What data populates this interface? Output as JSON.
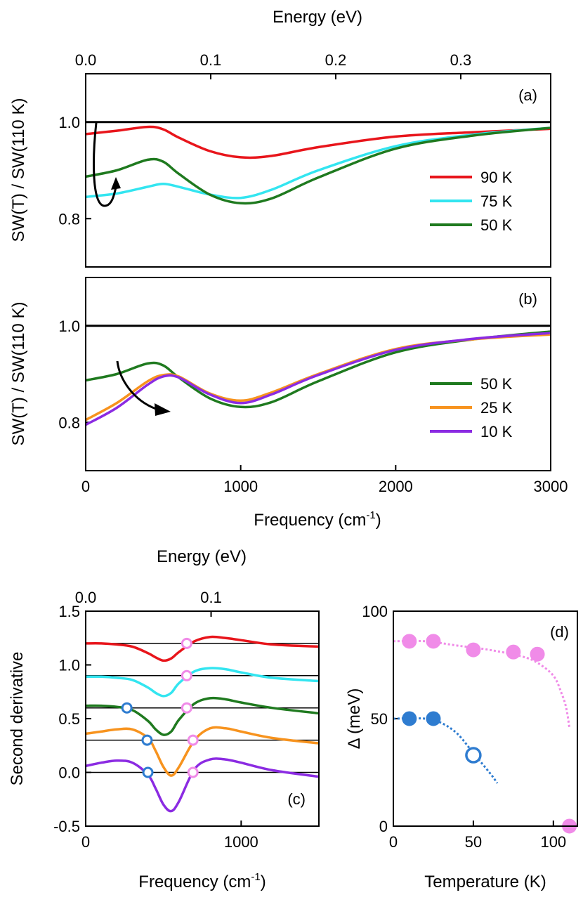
{
  "chart_data": [
    {
      "id": "a",
      "type": "line",
      "panel_label": "(a)",
      "top_axis_label": "Energy (eV)",
      "top_ticks": [
        "0.0",
        "0.1",
        "0.2",
        "0.3"
      ],
      "top_tick_values": [
        0.0,
        0.1,
        0.2,
        0.3
      ],
      "ylabel": "SW(T) / SW(110 K)",
      "xlim": [
        0,
        3000
      ],
      "ylim": [
        0.7,
        1.1
      ],
      "y_ticks": [
        "0.8",
        "1.0"
      ],
      "y_tick_values": [
        0.8,
        1.0
      ],
      "reference_line": 1.0,
      "legend_position": "right",
      "x": [
        0,
        200,
        400,
        500,
        600,
        800,
        1000,
        1200,
        1500,
        2000,
        2500,
        3000
      ],
      "series": [
        {
          "name": "90 K",
          "color": "#e8151b",
          "values": [
            0.975,
            0.982,
            0.99,
            0.985,
            0.968,
            0.94,
            0.927,
            0.93,
            0.948,
            0.97,
            0.979,
            0.986
          ]
        },
        {
          "name": "75 K",
          "color": "#33e5f0",
          "values": [
            0.845,
            0.852,
            0.866,
            0.872,
            0.866,
            0.85,
            0.843,
            0.86,
            0.9,
            0.95,
            0.974,
            0.988
          ]
        },
        {
          "name": "50 K",
          "color": "#1f7a1f",
          "values": [
            0.887,
            0.9,
            0.922,
            0.918,
            0.893,
            0.85,
            0.832,
            0.842,
            0.885,
            0.945,
            0.972,
            0.988
          ]
        }
      ]
    },
    {
      "id": "b",
      "type": "line",
      "panel_label": "(b)",
      "ylabel": "SW(T) / SW(110 K)",
      "xlabel": "Frequency (cm",
      "xlabel_sup": "-1",
      "xlabel_end": ")",
      "xlim": [
        0,
        3000
      ],
      "ylim": [
        0.7,
        1.1
      ],
      "x_ticks": [
        "0",
        "1000",
        "2000",
        "3000"
      ],
      "x_tick_values": [
        0,
        1000,
        2000,
        3000
      ],
      "y_ticks": [
        "0.8",
        "1.0"
      ],
      "y_tick_values": [
        0.8,
        1.0
      ],
      "reference_line": 1.0,
      "legend_position": "right",
      "x": [
        0,
        200,
        400,
        500,
        600,
        800,
        1000,
        1200,
        1500,
        2000,
        2500,
        3000
      ],
      "series": [
        {
          "name": "50 K",
          "color": "#1f7a1f",
          "values": [
            0.887,
            0.9,
            0.922,
            0.918,
            0.893,
            0.85,
            0.832,
            0.842,
            0.885,
            0.945,
            0.972,
            0.988
          ]
        },
        {
          "name": "25 K",
          "color": "#f7931e",
          "values": [
            0.805,
            0.84,
            0.885,
            0.898,
            0.895,
            0.86,
            0.845,
            0.862,
            0.9,
            0.952,
            0.972,
            0.982
          ]
        },
        {
          "name": "10 K",
          "color": "#8b2be2",
          "values": [
            0.795,
            0.83,
            0.878,
            0.895,
            0.893,
            0.858,
            0.84,
            0.858,
            0.898,
            0.95,
            0.973,
            0.985
          ]
        }
      ]
    },
    {
      "id": "c",
      "type": "line",
      "panel_label": "(c)",
      "top_axis_label": "Energy (eV)",
      "top_ticks": [
        "0.0",
        "0.1"
      ],
      "top_tick_values": [
        0.0,
        0.1
      ],
      "ylabel": "Second derivative",
      "xlabel": "Frequency (cm",
      "xlabel_sup": "-1",
      "xlabel_end": ")",
      "xlim": [
        0,
        1500
      ],
      "ylim": [
        -0.5,
        1.5
      ],
      "x_ticks": [
        "0",
        "1000"
      ],
      "x_tick_values": [
        0,
        1000
      ],
      "y_ticks": [
        "-0.5",
        "0.0",
        "0.5",
        "1.0",
        "1.5"
      ],
      "y_tick_values": [
        -0.5,
        0.0,
        0.5,
        1.0,
        1.5
      ],
      "baselines": [
        1.2,
        0.9,
        0.6,
        0.3,
        0.0
      ],
      "x": [
        0,
        100,
        200,
        300,
        400,
        450,
        500,
        550,
        600,
        700,
        800,
        900,
        1000,
        1200,
        1500
      ],
      "series": [
        {
          "name": "90 K",
          "color": "#e8151b",
          "values": [
            1.2,
            1.2,
            1.19,
            1.17,
            1.11,
            1.07,
            1.04,
            1.06,
            1.12,
            1.22,
            1.26,
            1.25,
            1.23,
            1.19,
            1.17
          ]
        },
        {
          "name": "75 K",
          "color": "#33e5f0",
          "values": [
            0.89,
            0.89,
            0.88,
            0.86,
            0.79,
            0.74,
            0.71,
            0.74,
            0.83,
            0.94,
            0.97,
            0.96,
            0.93,
            0.88,
            0.85
          ]
        },
        {
          "name": "50 K",
          "color": "#1f7a1f",
          "values": [
            0.62,
            0.62,
            0.61,
            0.58,
            0.48,
            0.4,
            0.35,
            0.38,
            0.49,
            0.64,
            0.69,
            0.68,
            0.65,
            0.6,
            0.55
          ]
        },
        {
          "name": "25 K",
          "color": "#f7931e",
          "values": [
            0.36,
            0.38,
            0.4,
            0.4,
            0.32,
            0.2,
            0.05,
            -0.03,
            0.05,
            0.3,
            0.41,
            0.41,
            0.38,
            0.32,
            0.27
          ]
        },
        {
          "name": "10 K",
          "color": "#8b2be2",
          "values": [
            0.06,
            0.09,
            0.11,
            0.09,
            -0.02,
            -0.15,
            -0.3,
            -0.36,
            -0.27,
            0.03,
            0.12,
            0.12,
            0.09,
            0.02,
            -0.04
          ]
        }
      ],
      "markers": [
        {
          "type": "pink",
          "x": 650,
          "y": 1.2
        },
        {
          "type": "pink",
          "x": 650,
          "y": 0.9
        },
        {
          "type": "pink",
          "x": 650,
          "y": 0.6
        },
        {
          "type": "pink",
          "x": 690,
          "y": 0.3
        },
        {
          "type": "pink",
          "x": 690,
          "y": 0.0
        },
        {
          "type": "blue",
          "x": 265,
          "y": 0.6
        },
        {
          "type": "blue",
          "x": 395,
          "y": 0.3
        },
        {
          "type": "blue",
          "x": 400,
          "y": 0.0
        }
      ]
    },
    {
      "id": "d",
      "type": "scatter",
      "panel_label": "(d)",
      "ylabel": "Δ (meV)",
      "xlabel": "Temperature (K)",
      "xlim": [
        0,
        115
      ],
      "ylim": [
        0,
        100
      ],
      "x_ticks": [
        "0",
        "50",
        "100"
      ],
      "x_tick_values": [
        0,
        50,
        100
      ],
      "y_ticks": [
        "0",
        "50",
        "100"
      ],
      "y_tick_values": [
        0,
        50,
        100
      ],
      "series": [
        {
          "name": "pink",
          "color": "#f08be8",
          "points": [
            [
              10,
              86
            ],
            [
              25,
              86
            ],
            [
              50,
              82
            ],
            [
              75,
              81
            ],
            [
              90,
              80
            ],
            [
              110,
              0
            ]
          ]
        },
        {
          "name": "blue filled",
          "color": "#2e7cd0",
          "points": [
            [
              10,
              50
            ],
            [
              25,
              50
            ]
          ]
        },
        {
          "name": "blue open",
          "color": "#2e7cd0",
          "points": [
            [
              50,
              33
            ]
          ]
        }
      ],
      "fits": [
        {
          "name": "pink fit",
          "color": "#f08be8",
          "x": [
            0,
            20,
            40,
            60,
            80,
            90,
            100,
            105,
            108,
            110
          ],
          "y": [
            86,
            86,
            84,
            82,
            79,
            76,
            70,
            62,
            55,
            46
          ]
        },
        {
          "name": "blue fit",
          "color": "#2e7cd0",
          "x": [
            0,
            20,
            30,
            40,
            50,
            60,
            65
          ],
          "y": [
            50,
            50,
            48,
            43,
            34,
            25,
            20
          ]
        }
      ]
    }
  ]
}
